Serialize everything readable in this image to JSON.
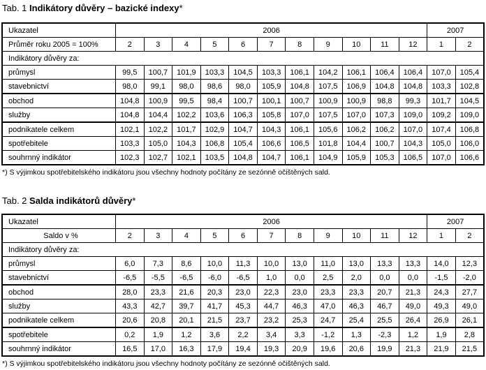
{
  "tables": [
    {
      "title_prefix": "Tab. 1 ",
      "title_bold": "Indikátory důvěry – bazické indexy",
      "title_suffix": "*",
      "header_label": "Ukazatel",
      "subheader_label": "Průměr roku 2005 = 100%",
      "year_2006": "2006",
      "year_2007": "2007",
      "months": [
        "2",
        "3",
        "4",
        "5",
        "6",
        "7",
        "8",
        "9",
        "10",
        "11",
        "12",
        "1",
        "2"
      ],
      "section_label": "Indikátory důvěry za:",
      "rows": [
        {
          "label": "průmysl",
          "values": [
            "99,5",
            "100,7",
            "101,9",
            "103,3",
            "104,5",
            "103,3",
            "106,1",
            "104,2",
            "106,1",
            "106,4",
            "106,4",
            "107,0",
            "105,4"
          ]
        },
        {
          "label": "stavebnictví",
          "values": [
            "98,0",
            "99,1",
            "98,0",
            "98,6",
            "98,0",
            "105,9",
            "104,8",
            "107,5",
            "106,9",
            "104,8",
            "104,8",
            "103,3",
            "102,8"
          ]
        },
        {
          "label": "obchod",
          "values": [
            "104,8",
            "100,9",
            "99,5",
            "98,4",
            "100,7",
            "100,1",
            "100,7",
            "100,9",
            "100,9",
            "98,8",
            "99,3",
            "101,7",
            "104,5"
          ]
        },
        {
          "label": "služby",
          "values": [
            "104,8",
            "104,4",
            "102,2",
            "103,6",
            "106,3",
            "105,8",
            "107,0",
            "107,5",
            "107,0",
            "107,3",
            "109,0",
            "109,2",
            "109,0"
          ]
        },
        {
          "label": "podnikatele celkem",
          "values": [
            "102,1",
            "102,2",
            "101,7",
            "102,9",
            "104,7",
            "104,3",
            "106,1",
            "105,6",
            "106,2",
            "106,2",
            "107,0",
            "107,4",
            "106,8"
          ]
        },
        {
          "label": "spotřebitele",
          "values": [
            "103,3",
            "105,0",
            "104,3",
            "106,8",
            "105,4",
            "106,6",
            "106,5",
            "101,8",
            "104,4",
            "100,7",
            "104,3",
            "105,0",
            "106,0"
          ]
        },
        {
          "label": "souhrnný indikátor",
          "values": [
            "102,3",
            "102,7",
            "102,1",
            "103,5",
            "104,8",
            "104,7",
            "106,1",
            "104,9",
            "105,9",
            "105,3",
            "106,5",
            "107,0",
            "106,6"
          ]
        }
      ],
      "footnote": "*) S výjimkou spotřebitelského indikátoru jsou všechny hodnoty počítány ze sezónně očištěných sald."
    },
    {
      "title_prefix": "Tab. 2 ",
      "title_bold": "Salda indikátorů důvěry",
      "title_suffix": "*",
      "header_label": "Ukazatel",
      "subheader_label": "Saldo v %",
      "year_2006": "2006",
      "year_2007": "2007",
      "months": [
        "2",
        "3",
        "4",
        "5",
        "6",
        "7",
        "8",
        "9",
        "10",
        "11",
        "12",
        "1",
        "2"
      ],
      "section_label": "Indikátory důvěry za:",
      "rows": [
        {
          "label": "průmysl",
          "values": [
            "6,0",
            "7,3",
            "8,6",
            "10,0",
            "11,3",
            "10,0",
            "13,0",
            "11,0",
            "13,0",
            "13,3",
            "13,3",
            "14,0",
            "12,3"
          ]
        },
        {
          "label": "stavebnictví",
          "values": [
            "-6,5",
            "-5,5",
            "-6,5",
            "-6,0",
            "-6,5",
            "1,0",
            "0,0",
            "2,5",
            "2,0",
            "0,0",
            "0,0",
            "-1,5",
            "-2,0"
          ]
        },
        {
          "label": "obchod",
          "values": [
            "28,0",
            "23,3",
            "21,6",
            "20,3",
            "23,0",
            "22,3",
            "23,0",
            "23,3",
            "23,3",
            "20,7",
            "21,3",
            "24,3",
            "27,7"
          ]
        },
        {
          "label": "služby",
          "values": [
            "43,3",
            "42,7",
            "39,7",
            "41,7",
            "45,3",
            "44,7",
            "46,3",
            "47,0",
            "46,3",
            "46,7",
            "49,0",
            "49,3",
            "49,0"
          ]
        },
        {
          "label": "podnikatele celkem",
          "values": [
            "20,6",
            "20,8",
            "20,1",
            "21,5",
            "23,7",
            "23,2",
            "25,3",
            "24,7",
            "25,4",
            "25,5",
            "26,4",
            "26,9",
            "26,1"
          ]
        },
        {
          "label": "spotřebitele",
          "values": [
            "0,2",
            "1,9",
            "1,2",
            "3,6",
            "2,2",
            "3,4",
            "3,3",
            "-1,2",
            "1,3",
            "-2,3",
            "1,2",
            "1,9",
            "2,8"
          ]
        },
        {
          "label": "souhrnný indikátor",
          "values": [
            "16,5",
            "17,0",
            "16,3",
            "17,9",
            "19,4",
            "19,3",
            "20,9",
            "19,6",
            "20,6",
            "19,9",
            "21,3",
            "21,9",
            "21,5"
          ]
        }
      ],
      "footnote": "*) S výjimkou spotřebitelského indikátoru jsou všechny hodnoty počítány ze sezónně očištěných sald."
    }
  ]
}
